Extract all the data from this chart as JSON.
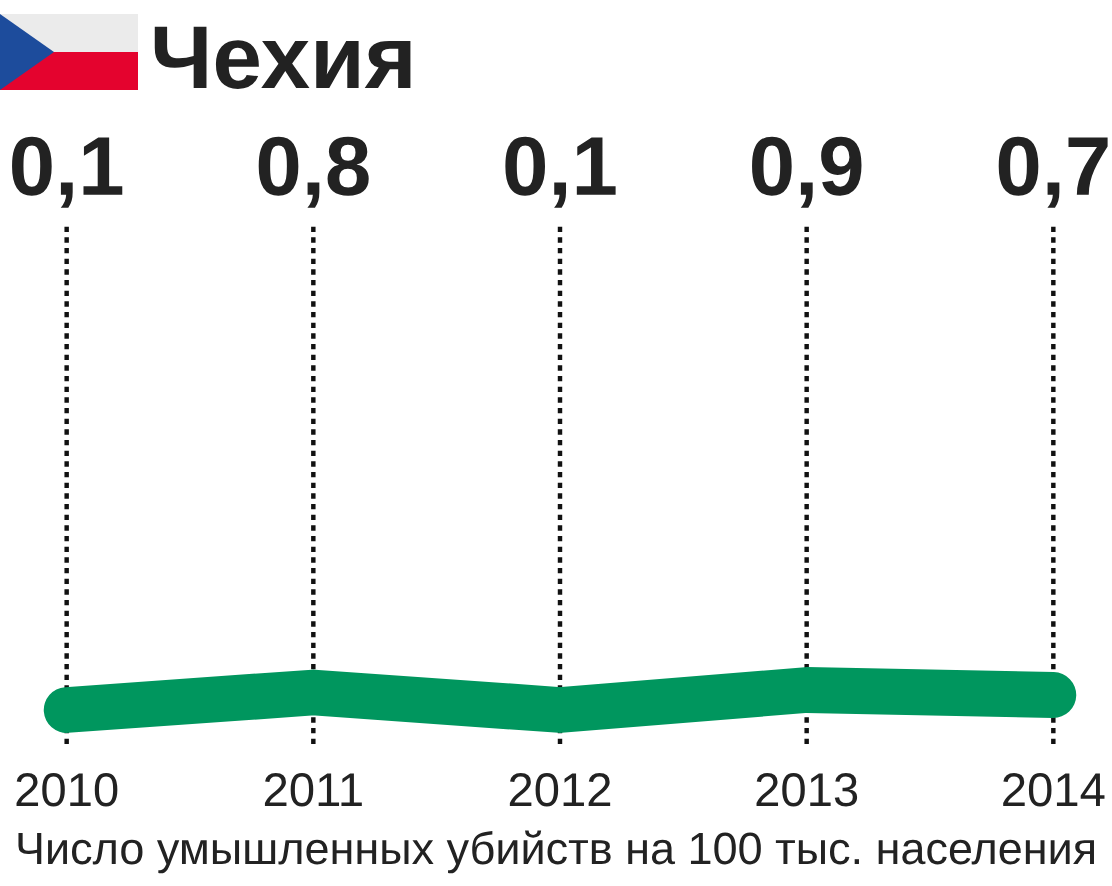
{
  "chart_data": {
    "type": "line",
    "title": "Чехия",
    "categories": [
      "2010",
      "2011",
      "2012",
      "2013",
      "2014"
    ],
    "series": [
      {
        "color": "#00965e",
        "values": [
          0.1,
          0.8,
          0.1,
          0.9,
          0.7
        ],
        "value_labels": [
          "0,1",
          "0,8",
          "0,1",
          "0,9",
          "0,7"
        ]
      }
    ],
    "grid": "x",
    "marker": "none",
    "line_style": "solid",
    "tick_labels": "x",
    "annotations": [
      "Число умышленных убийств на 100 тыс. населения"
    ]
  }
}
